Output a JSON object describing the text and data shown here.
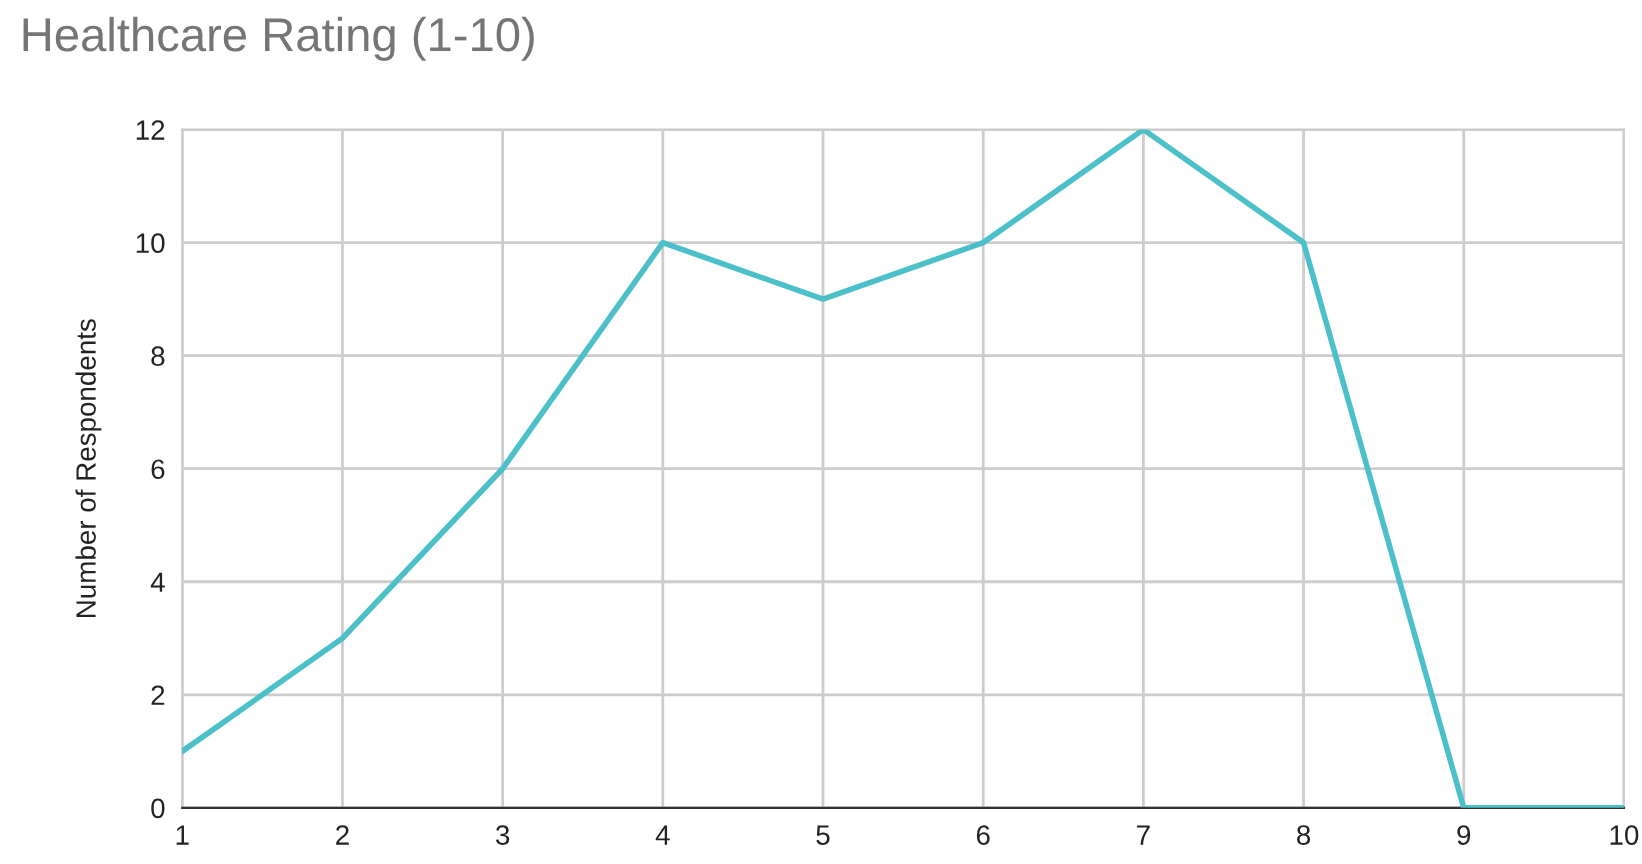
{
  "chart_data": {
    "type": "line",
    "title": "Healthcare Rating (1-10)",
    "ylabel": "Number of Respondents",
    "x": [
      1,
      2,
      3,
      4,
      5,
      6,
      7,
      8,
      9,
      10
    ],
    "series": [
      {
        "color": "#4bc0c8",
        "values": [
          1,
          3,
          6,
          10,
          9,
          10,
          12,
          10,
          0,
          0
        ]
      }
    ],
    "xlim": [
      1,
      10
    ],
    "xticks": [
      1,
      2,
      3,
      4,
      5,
      6,
      7,
      8,
      9,
      10
    ],
    "ylim": [
      0,
      12
    ],
    "yticks": [
      0,
      2,
      4,
      6,
      8,
      10,
      12
    ],
    "grid": true,
    "legend": false,
    "marker": "none",
    "line_style": "solid"
  }
}
